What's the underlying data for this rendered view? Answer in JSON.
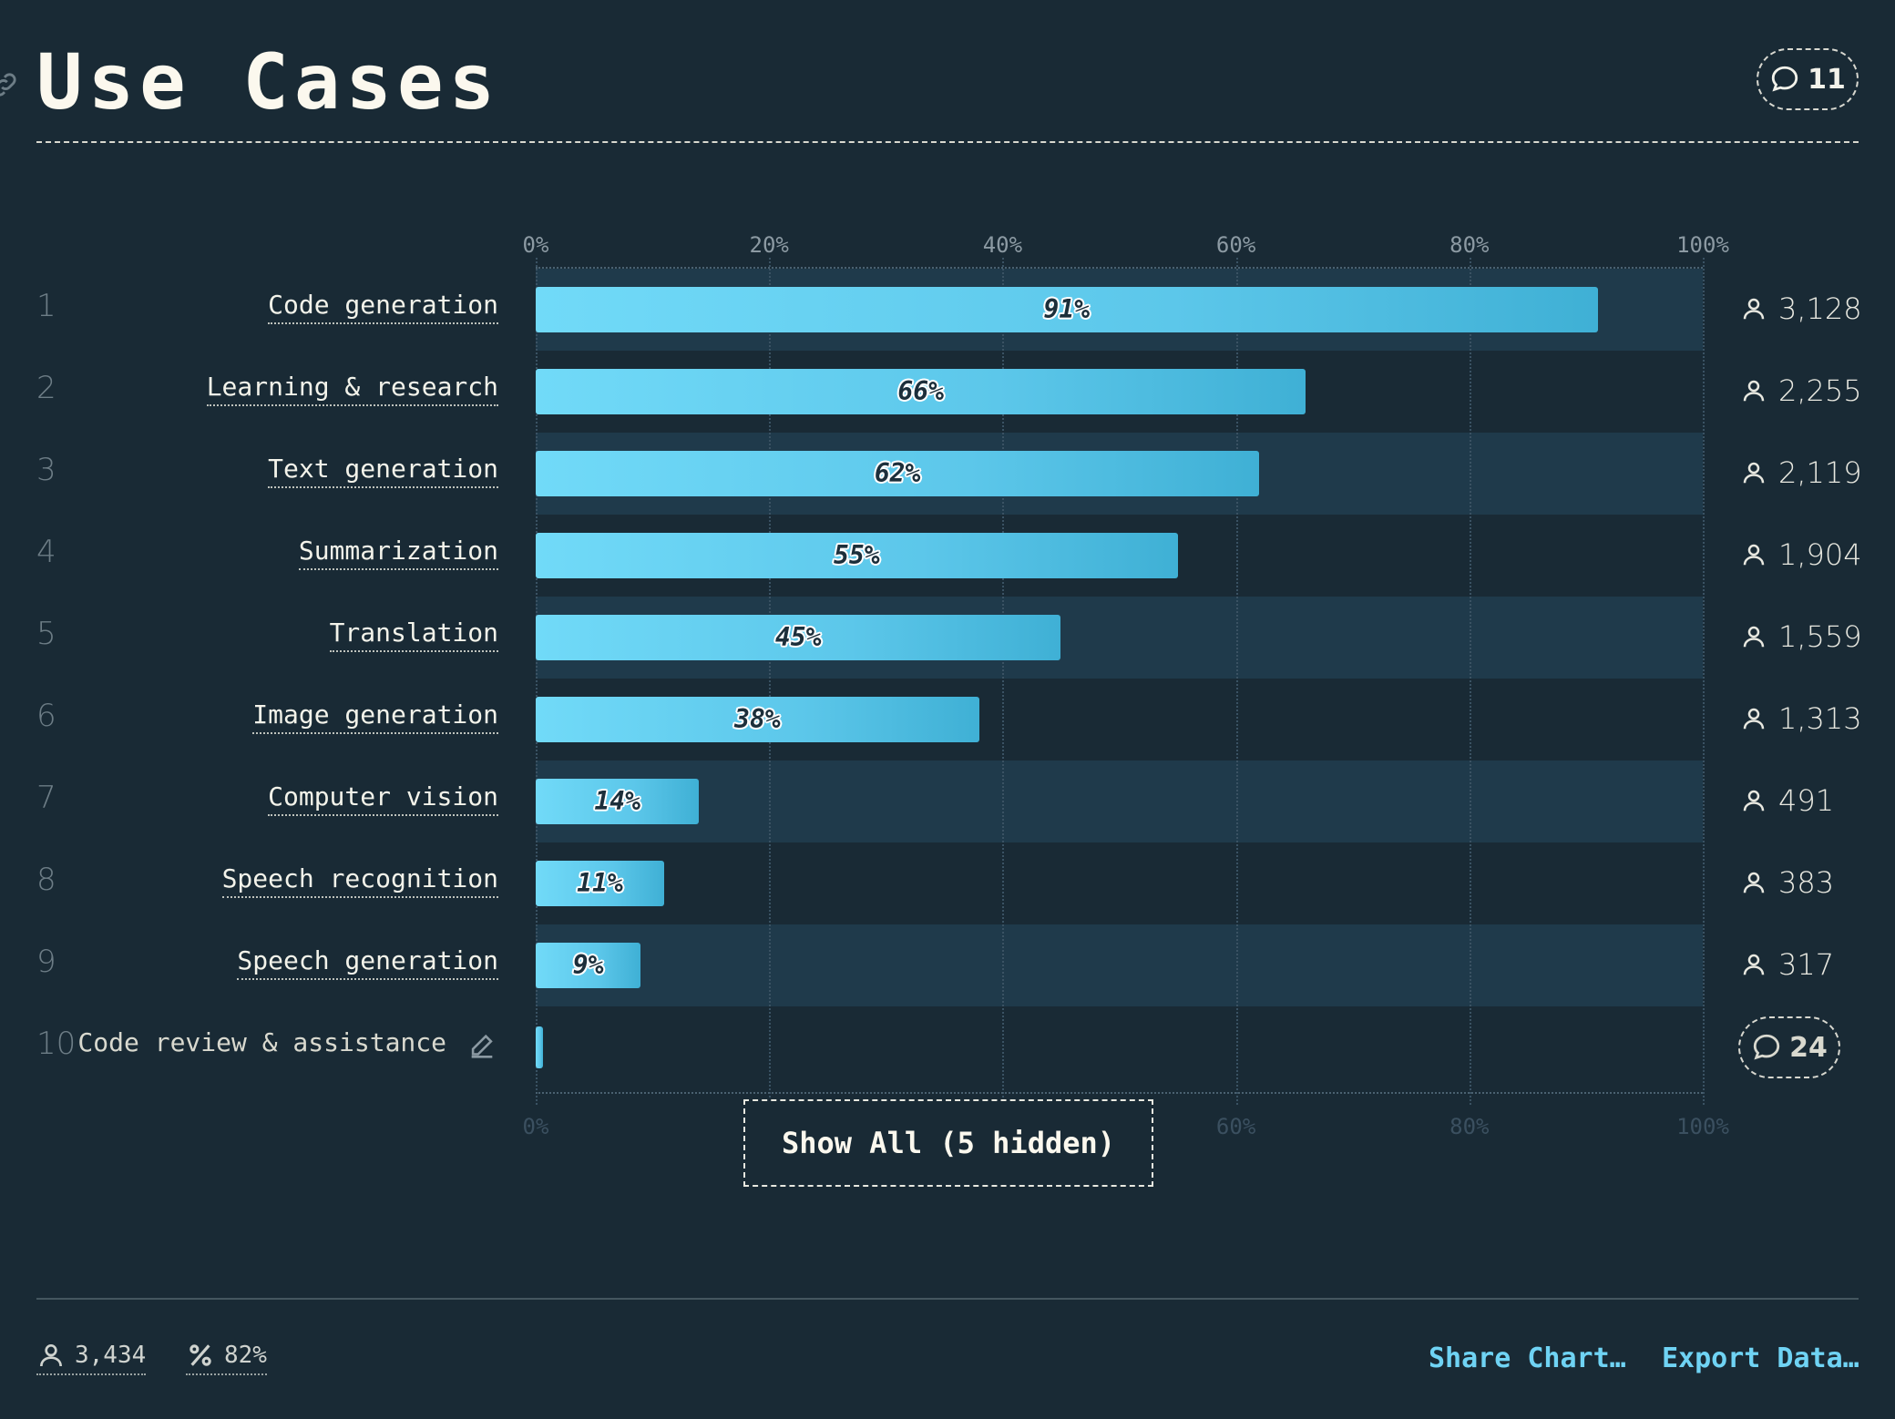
{
  "header": {
    "title": "Use Cases",
    "comment_count": "11"
  },
  "chart_data": {
    "type": "bar",
    "orientation": "horizontal",
    "x_ticks": [
      "0%",
      "20%",
      "40%",
      "60%",
      "80%",
      "100%"
    ],
    "xlim": [
      0,
      100
    ],
    "grid": true,
    "rows": [
      {
        "rank": "1",
        "category": "Code generation",
        "value": 91,
        "label": "91%",
        "count": "3,128"
      },
      {
        "rank": "2",
        "category": "Learning & research",
        "value": 66,
        "label": "66%",
        "count": "2,255"
      },
      {
        "rank": "3",
        "category": "Text generation",
        "value": 62,
        "label": "62%",
        "count": "2,119"
      },
      {
        "rank": "4",
        "category": "Summarization",
        "value": 55,
        "label": "55%",
        "count": "1,904"
      },
      {
        "rank": "5",
        "category": "Translation",
        "value": 45,
        "label": "45%",
        "count": "1,559"
      },
      {
        "rank": "6",
        "category": "Image generation",
        "value": 38,
        "label": "38%",
        "count": "1,313"
      },
      {
        "rank": "7",
        "category": "Computer vision",
        "value": 14,
        "label": "14%",
        "count": "491"
      },
      {
        "rank": "8",
        "category": "Speech recognition",
        "value": 11,
        "label": "11%",
        "count": "383"
      },
      {
        "rank": "9",
        "category": "Speech generation",
        "value": 9,
        "label": "9%",
        "count": "317"
      },
      {
        "rank": "10",
        "category": "Code review & assistance",
        "value": 0.6,
        "label": "",
        "count": "",
        "comment_count": "24"
      }
    ]
  },
  "controls": {
    "show_all_label": "Show All (5 hidden)"
  },
  "footer": {
    "respondents": "3,434",
    "percent": "82%",
    "share_label": "Share Chart…",
    "export_label": "Export Data…"
  },
  "colors": {
    "background": "#192a35",
    "band": "#1f3a4b",
    "bar_start": "#71daf8",
    "bar_end": "#3fb0d5",
    "accent_link": "#6fd3f4"
  },
  "icons": {
    "title": "link-icon",
    "comments": "speech-bubble-icon",
    "count": "person-icon",
    "edit": "pencil-icon",
    "percent": "percent-icon"
  }
}
